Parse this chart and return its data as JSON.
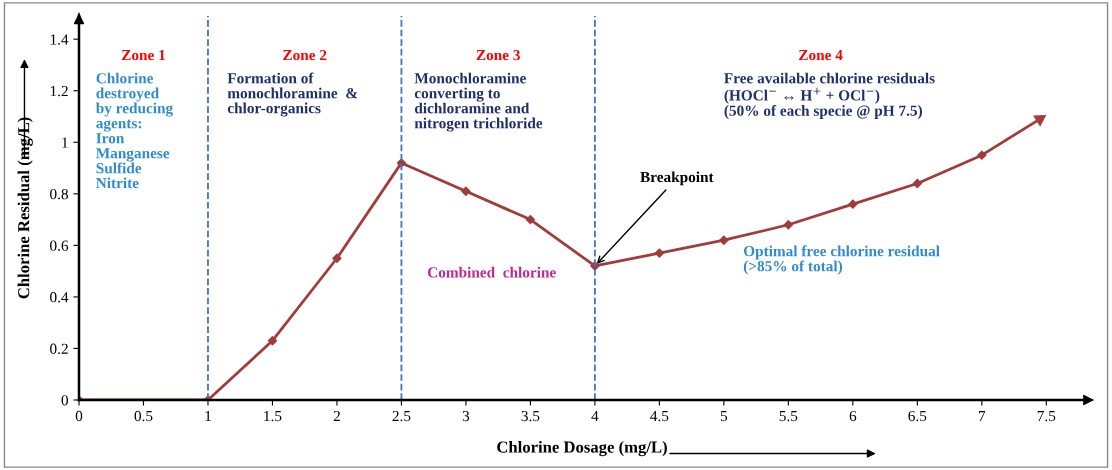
{
  "chart_data": {
    "type": "line",
    "xlabel": "Chlorine Dosage (mg/L)",
    "ylabel": "Chlorine Residual (mg/L)",
    "x": [
      0,
      1,
      1.5,
      2,
      2.5,
      3,
      3.5,
      4,
      4.5,
      5,
      5.5,
      6,
      6.5,
      7,
      7.45
    ],
    "series": [
      {
        "color": "#a33b3b",
        "values": [
          0,
          0,
          0.23,
          0.55,
          0.92,
          0.81,
          0.7,
          0.52,
          0.57,
          0.62,
          0.68,
          0.76,
          0.84,
          0.95,
          1.09
        ]
      }
    ],
    "marker": "diamond",
    "line_style": "solid",
    "grid": false,
    "xlim": [
      0,
      7.8
    ],
    "ylim": [
      0,
      1.49
    ],
    "xticks": [
      0,
      0.5,
      1,
      1.5,
      2,
      2.5,
      3,
      3.5,
      4,
      4.5,
      5,
      5.5,
      6,
      6.5,
      7,
      7.5
    ],
    "yticks": [
      0,
      0.2,
      0.4,
      0.6,
      0.8,
      1,
      1.2,
      1.4
    ],
    "ref_lines": [
      {
        "axis": "x",
        "value": 1,
        "color": "#4472c4",
        "line_style": "dashed"
      },
      {
        "axis": "x",
        "value": 2.5,
        "color": "#4472c4",
        "line_style": "dashed"
      },
      {
        "axis": "x",
        "value": 4,
        "color": "#4472c4",
        "line_style": "dashed"
      }
    ],
    "annotations": [
      "Zone 1",
      "Zone 2",
      "Zone 3",
      "Zone 4",
      "Chlorine\ndestroyed\nby reducing\nagents:\nIron\nManganese\nSulfide\nNitrite",
      "Formation of\nmonochloramine  &\nchlor-organics",
      "Monochloramine\nconverting to\ndichloramine and\nnitrogen trichloride",
      "Free available chlorine residuals\n(HOCl$^{−}$ ↔ H$^{+}$ + OCl$^{−}$)\n(50% of each specie @ pH 7.5)",
      "Combined  chlorine",
      "Optimal free chlorine residual\n(>85% of total)",
      {
        "text": "Breakpoint",
        "x": 4,
        "y": 0.52
      }
    ]
  }
}
